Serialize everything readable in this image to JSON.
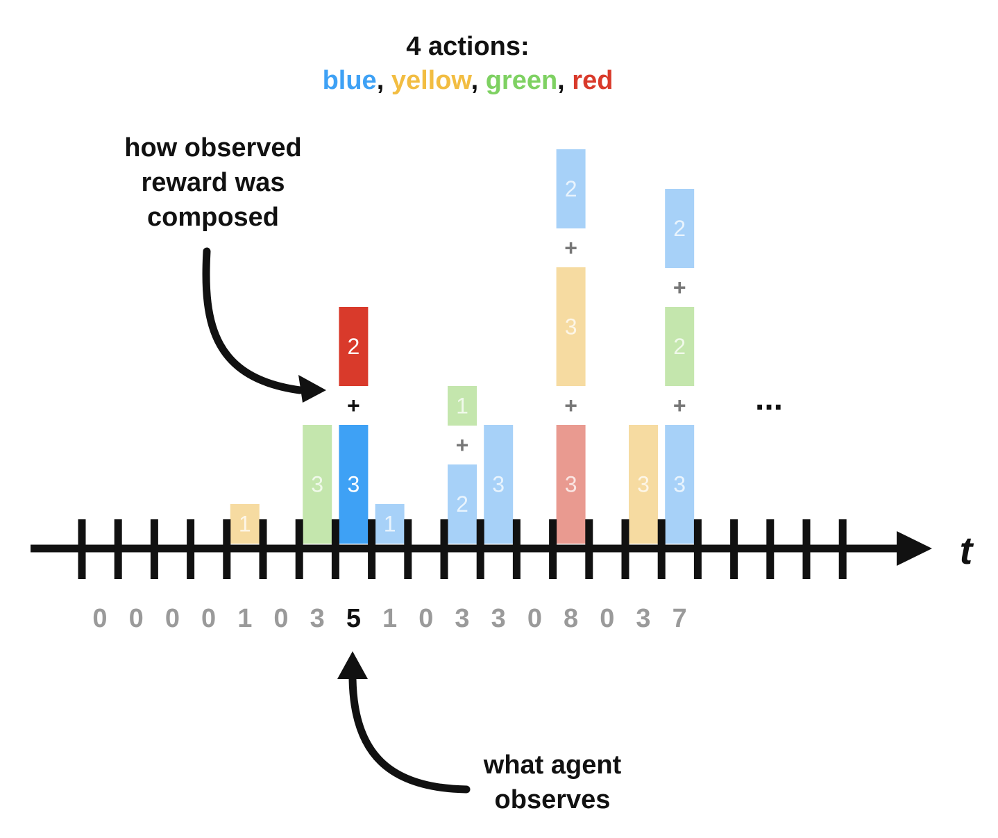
{
  "title": {
    "line1": "4 actions:",
    "actions": [
      {
        "name": "blue",
        "color": "#3ea1f5"
      },
      {
        "name": "yellow",
        "color": "#f2bd42"
      },
      {
        "name": "green",
        "color": "#7ed162"
      },
      {
        "name": "red",
        "color": "#d93a2b"
      }
    ],
    "separator": ", "
  },
  "annotations": {
    "top": [
      "how observed",
      "reward was",
      "composed"
    ],
    "bottom": [
      "what agent",
      "observes"
    ]
  },
  "axis": {
    "label": "t",
    "ticks": 22,
    "ellipsis": "..."
  },
  "colors": {
    "blue": {
      "solid": "#3ea1f5",
      "faded": "#a7d1f8"
    },
    "yellow": {
      "solid": "#f2bd42",
      "faded": "#f6dba1"
    },
    "green": {
      "solid": "#7ed162",
      "faded": "#c4e6ad"
    },
    "red": {
      "solid": "#d93a2b",
      "faded": "#e99a90"
    }
  },
  "observed_rewards": [
    0,
    0,
    0,
    0,
    1,
    0,
    3,
    5,
    1,
    0,
    3,
    3,
    0,
    8,
    0,
    3,
    7
  ],
  "highlight_index": 7,
  "plus_sign": "+",
  "stacks": [
    {
      "t": 4,
      "segments": [
        {
          "action": "yellow",
          "value": 1
        }
      ]
    },
    {
      "t": 6,
      "segments": [
        {
          "action": "green",
          "value": 3
        }
      ]
    },
    {
      "t": 7,
      "highlight": true,
      "segments": [
        {
          "action": "blue",
          "value": 3
        },
        {
          "action": "red",
          "value": 2
        }
      ]
    },
    {
      "t": 8,
      "segments": [
        {
          "action": "blue",
          "value": 1
        }
      ]
    },
    {
      "t": 10,
      "segments": [
        {
          "action": "blue",
          "value": 2
        },
        {
          "action": "green",
          "value": 1
        }
      ]
    },
    {
      "t": 11,
      "segments": [
        {
          "action": "blue",
          "value": 3
        }
      ]
    },
    {
      "t": 13,
      "segments": [
        {
          "action": "red",
          "value": 3
        },
        {
          "action": "yellow",
          "value": 3
        },
        {
          "action": "blue",
          "value": 2
        }
      ]
    },
    {
      "t": 15,
      "segments": [
        {
          "action": "yellow",
          "value": 3
        }
      ]
    },
    {
      "t": 16,
      "segments": [
        {
          "action": "blue",
          "value": 3
        },
        {
          "action": "green",
          "value": 2
        },
        {
          "action": "blue",
          "value": 2
        }
      ]
    }
  ]
}
